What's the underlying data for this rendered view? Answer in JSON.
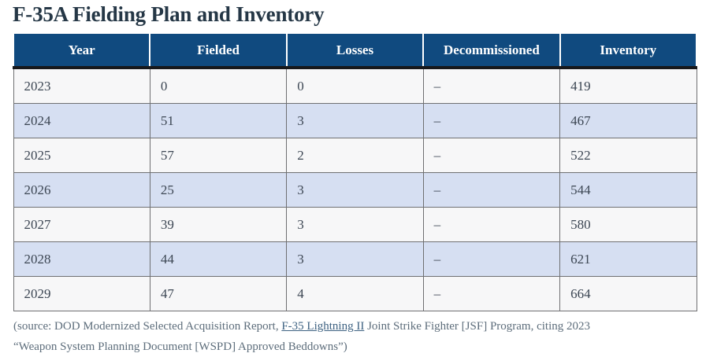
{
  "title": "F-35A Fielding Plan and Inventory",
  "chart_data": {
    "type": "table",
    "title": "F-35A Fielding Plan and Inventory",
    "columns": [
      "Year",
      "Fielded",
      "Losses",
      "Decommissioned",
      "Inventory"
    ],
    "rows": [
      [
        "2023",
        "0",
        "0",
        "–",
        "419"
      ],
      [
        "2024",
        "51",
        "3",
        "–",
        "467"
      ],
      [
        "2025",
        "57",
        "2",
        "–",
        "522"
      ],
      [
        "2026",
        "25",
        "3",
        "–",
        "544"
      ],
      [
        "2027",
        "39",
        "3",
        "–",
        "580"
      ],
      [
        "2028",
        "44",
        "3",
        "–",
        "621"
      ],
      [
        "2029",
        "47",
        "4",
        "–",
        "664"
      ]
    ],
    "layout": {
      "header_background": "#104a7f",
      "alternating_row_background": "#d6dff2",
      "plain_row_background": "#f7f7f8",
      "header_text_color": "#ffffff"
    }
  },
  "source": {
    "line1_prefix": "(source: DOD Modernized Selected Acquisition Report, ",
    "link_text": "F-35 Lightning II",
    "line1_suffix": " Joint Strike Fighter [JSF] Program, citing 2023",
    "line2": "“Weapon System Planning Document [WSPD] Approved Beddowns”)"
  },
  "colors": {
    "title_text": "#253746",
    "header_bg": "#104a7f",
    "row_alt_bg": "#d6dff2",
    "row_bg": "#f7f7f8",
    "cell_text": "#3c4653",
    "source_text": "#5d6d7b",
    "link": "#3e6282",
    "header_underline": "#17181b",
    "cell_border": "#6f7072"
  }
}
